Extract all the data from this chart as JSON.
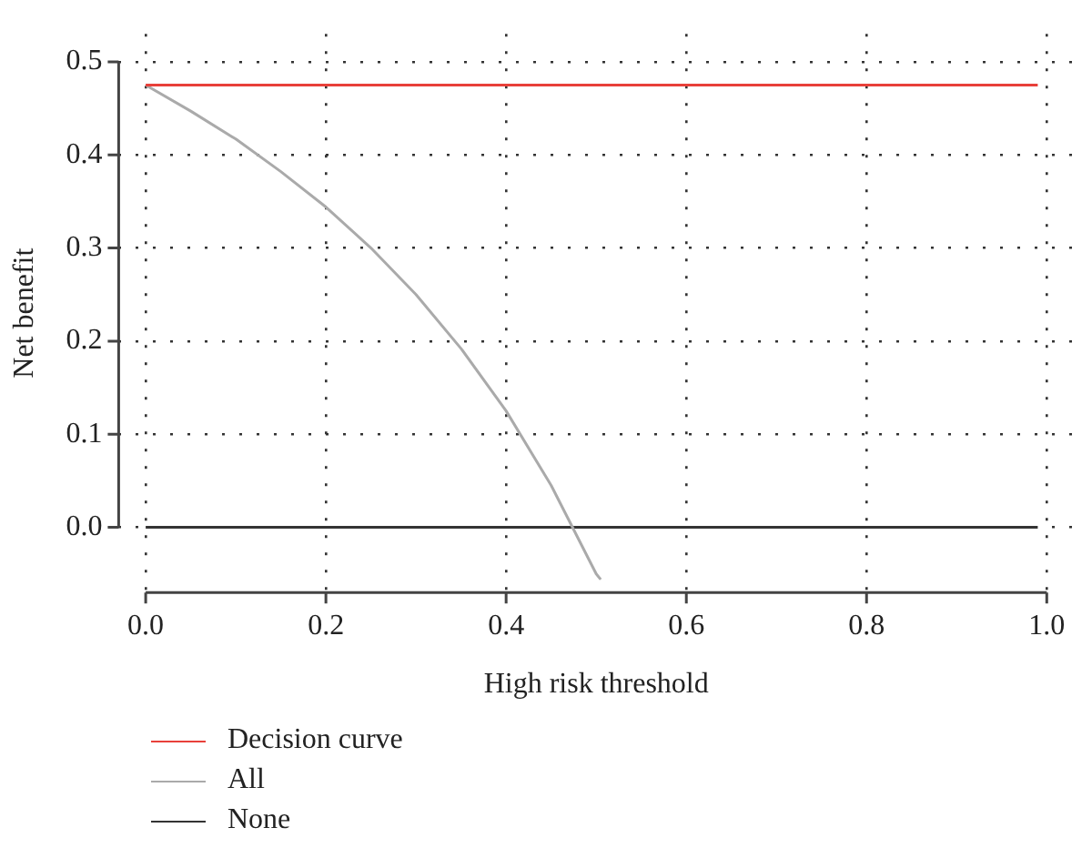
{
  "chart_data": {
    "type": "line",
    "xlabel": "High risk threshold",
    "ylabel": "Net benefit",
    "xlim": [
      -0.03,
      1.03
    ],
    "ylim": [
      -0.07,
      0.53
    ],
    "xticks": [
      {
        "value": 0,
        "label": "0.0"
      },
      0.2,
      0.4,
      0.6,
      0.8,
      {
        "value": 1,
        "label": "1.0"
      }
    ],
    "yticks": [
      {
        "value": 0,
        "label": "0.0"
      },
      0.1,
      0.2,
      0.3,
      0.4,
      0.5
    ],
    "grid": true,
    "line_style": "solid",
    "legend": "bottom left",
    "marker": "none",
    "series": [
      {
        "name": "Decision curve",
        "color": "#e8403a",
        "x": [
          0,
          0.99
        ],
        "values": [
          0.475,
          0.475
        ]
      },
      {
        "name": "All",
        "color": "#aaaaaa",
        "x": [
          0,
          0.05,
          0.1,
          0.15,
          0.2,
          0.25,
          0.3,
          0.35,
          0.4,
          0.45,
          0.5,
          0.505
        ],
        "values": [
          0.475,
          0.447,
          0.417,
          0.382,
          0.344,
          0.3,
          0.25,
          0.192,
          0.125,
          0.045,
          -0.05,
          -0.056
        ]
      },
      {
        "name": "None",
        "color": "#333333",
        "x": [
          0,
          0.99
        ],
        "values": [
          0,
          0
        ]
      }
    ]
  }
}
